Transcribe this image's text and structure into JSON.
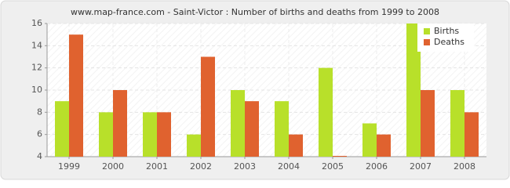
{
  "chart_data": {
    "type": "bar",
    "title": "www.map-france.com - Saint-Victor : Number of births and deaths from 1999 to 2008",
    "categories": [
      "1999",
      "2000",
      "2001",
      "2002",
      "2003",
      "2004",
      "2005",
      "2006",
      "2007",
      "2008"
    ],
    "series": [
      {
        "name": "Births",
        "color": "#b8e02a",
        "values": [
          9,
          8,
          8,
          6,
          10,
          9,
          12,
          7,
          16,
          10
        ]
      },
      {
        "name": "Deaths",
        "color": "#e0622f",
        "values": [
          15,
          10,
          8,
          13,
          9,
          6,
          4,
          6,
          10,
          8
        ]
      }
    ],
    "ylim": [
      4,
      16
    ],
    "yticks": [
      4,
      6,
      8,
      10,
      12,
      14,
      16
    ],
    "grid": true,
    "legend": "top-right"
  }
}
